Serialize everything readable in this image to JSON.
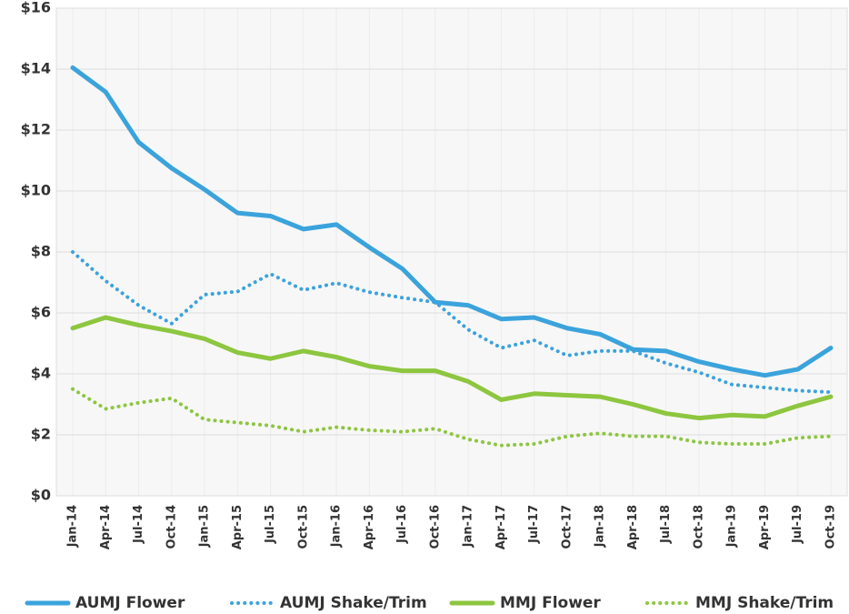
{
  "chart_data": {
    "type": "line",
    "categories": [
      "Jan-14",
      "Apr-14",
      "Jul-14",
      "Oct-14",
      "Jan-15",
      "Apr-15",
      "Jul-15",
      "Oct-15",
      "Jan-16",
      "Apr-16",
      "Jul-16",
      "Oct-16",
      "Jan-17",
      "Apr-17",
      "Jul-17",
      "Oct-17",
      "Jan-18",
      "Apr-18",
      "Jul-18",
      "Oct-18",
      "Jan-19",
      "Apr-19",
      "Jul-19",
      "Oct-19"
    ],
    "series": [
      {
        "name": "AUMJ Flower",
        "color": "#3ba3dc",
        "dash": "solid",
        "values": [
          14.05,
          13.25,
          11.6,
          10.75,
          10.05,
          9.28,
          9.18,
          8.75,
          8.9,
          8.15,
          7.45,
          6.35,
          6.25,
          5.8,
          5.85,
          5.5,
          5.3,
          4.8,
          4.75,
          4.4,
          4.15,
          3.95,
          4.15,
          4.85
        ]
      },
      {
        "name": "AUMJ Shake/Trim",
        "color": "#3ba3dc",
        "dash": "dotted",
        "values": [
          8.0,
          7.05,
          6.25,
          5.65,
          6.6,
          6.7,
          7.28,
          6.75,
          6.98,
          6.68,
          6.5,
          6.35,
          5.45,
          4.85,
          5.1,
          4.6,
          4.75,
          4.75,
          4.35,
          4.05,
          3.65,
          3.55,
          3.45,
          3.4
        ]
      },
      {
        "name": "MMJ Flower",
        "color": "#8dc63f",
        "dash": "solid",
        "values": [
          5.5,
          5.85,
          5.6,
          5.4,
          5.15,
          4.7,
          4.5,
          4.75,
          4.55,
          4.25,
          4.1,
          4.1,
          3.75,
          3.15,
          3.35,
          3.3,
          3.25,
          3.0,
          2.7,
          2.55,
          2.65,
          2.6,
          2.95,
          3.25
        ]
      },
      {
        "name": "MMJ Shake/Trim",
        "color": "#8dc63f",
        "dash": "dotted",
        "values": [
          3.5,
          2.85,
          3.05,
          3.2,
          2.5,
          2.4,
          2.3,
          2.1,
          2.25,
          2.15,
          2.1,
          2.2,
          1.85,
          1.65,
          1.7,
          1.95,
          2.05,
          1.95,
          1.95,
          1.75,
          1.7,
          1.7,
          1.9,
          1.95
        ]
      }
    ],
    "ylim": [
      0,
      16
    ],
    "yticks": [
      {
        "value": 0,
        "label": "$0"
      },
      {
        "value": 2,
        "label": "$2"
      },
      {
        "value": 4,
        "label": "$4"
      },
      {
        "value": 6,
        "label": "$6"
      },
      {
        "value": 8,
        "label": "$8"
      },
      {
        "value": 10,
        "label": "$10"
      },
      {
        "value": 12,
        "label": "$12"
      },
      {
        "value": 14,
        "label": "$14"
      },
      {
        "value": 16,
        "label": "$16"
      }
    ],
    "grid": true,
    "legend": "bottom"
  }
}
